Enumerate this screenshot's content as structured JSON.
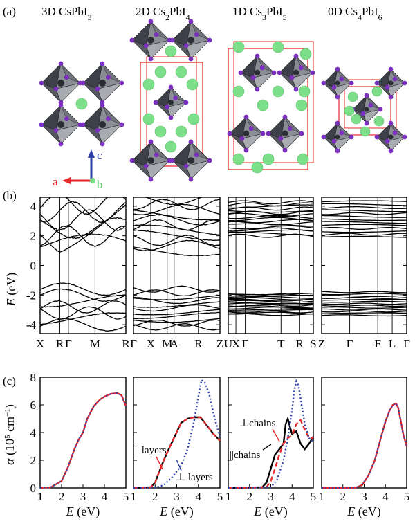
{
  "panel_labels": {
    "a": "(a)",
    "b": "(b)",
    "c": "(c)"
  },
  "structures": [
    {
      "prefix": "3D CsPbI",
      "sub": "3",
      "suffix": ""
    },
    {
      "prefix": "2D Cs",
      "sub": "2",
      "mid": "PbI",
      "sub2": "4"
    },
    {
      "prefix": "1D Cs",
      "sub": "3",
      "mid": "PbI",
      "sub2": "5"
    },
    {
      "prefix": "0D Cs",
      "sub": "4",
      "mid": "PbI",
      "sub2": "6"
    }
  ],
  "axes_legend": {
    "a": "a",
    "b": "b",
    "c": "c"
  },
  "colors": {
    "band": "#000000",
    "red": "#e8262a",
    "blue": "#2c3fa6",
    "cs": "#7ddf8a",
    "iodine": "#7a2fbf",
    "pb": "#555a66"
  },
  "band_ylabel": {
    "e": "E",
    "unit": "(eV)"
  },
  "abs_ylabel": {
    "alpha": "α",
    "unit": "(10",
    "exp": "5",
    "unit2": "cm",
    "exp2": "−1",
    "close": ")"
  },
  "abs_xlabel": {
    "e": "E",
    "unit": "(eV)"
  },
  "annotations": {
    "par_layers": "|| layers",
    "perp_layers": "⊥ layers",
    "perp_chains": "⊥chains",
    "par_chains": "||chains"
  },
  "chart_data": [
    {
      "type": "line",
      "panel": "b-3D",
      "ylabel": "E (eV)",
      "ylim": [
        -4.6,
        4.6
      ],
      "yticks": [
        -4,
        -2,
        0,
        2,
        4
      ],
      "kpoints": [
        "X",
        "R",
        "Γ",
        "M",
        "R"
      ],
      "kpos": [
        0,
        0.23,
        0.33,
        0.64,
        1.0
      ]
    },
    {
      "type": "line",
      "panel": "b-2D",
      "ylim": [
        -4.6,
        4.6
      ],
      "kpoints": [
        "Γ",
        "X",
        "M",
        "A",
        "R",
        "Z"
      ],
      "kpos": [
        0,
        0.2,
        0.39,
        0.47,
        0.75,
        1.0
      ]
    },
    {
      "type": "line",
      "panel": "b-1D",
      "ylim": [
        -4.6,
        4.6
      ],
      "kpoints": [
        "U",
        "X",
        "Γ",
        "T",
        "R",
        "S"
      ],
      "kpos": [
        0,
        0.09,
        0.2,
        0.62,
        0.84,
        1.0
      ]
    },
    {
      "type": "line",
      "panel": "b-0D",
      "ylim": [
        -4.6,
        4.6
      ],
      "kpoints": [
        "Z",
        "Γ",
        "F",
        "L",
        "Γ"
      ],
      "kpos": [
        0,
        0.33,
        0.66,
        0.83,
        1.0
      ]
    },
    {
      "type": "line",
      "panel": "c-3D",
      "xlabel": "E (eV)",
      "ylabel": "α (10^5 cm^-1)",
      "xlim": [
        1,
        5
      ],
      "ylim": [
        0,
        8
      ],
      "xticks": [
        1,
        2,
        3,
        4,
        5
      ],
      "yticks": [
        0,
        2,
        4,
        6,
        8
      ],
      "series": [
        {
          "x": [
            1,
            1.5,
            2.0,
            2.3,
            2.6,
            2.8,
            3.0,
            3.2,
            3.5,
            3.8,
            4.0,
            4.3,
            4.6,
            4.8,
            5.0
          ],
          "y": [
            0,
            0.05,
            0.5,
            1.5,
            2.8,
            3.5,
            4.0,
            5.0,
            5.9,
            6.4,
            6.6,
            6.8,
            6.85,
            6.7,
            5.9
          ]
        }
      ]
    },
    {
      "type": "line",
      "panel": "c-2D",
      "xlabel": "E (eV)",
      "xlim": [
        1,
        5
      ],
      "ylim": [
        0,
        8
      ],
      "xticks": [
        1,
        2,
        3,
        4,
        5
      ],
      "series": [
        {
          "x": [
            1,
            1.8,
            2.0,
            2.2,
            2.4,
            2.6,
            2.9,
            3.2,
            3.5,
            3.8,
            4.1,
            4.4,
            4.7,
            5.0
          ],
          "y": [
            0,
            0.05,
            0.4,
            1.2,
            2.0,
            2.7,
            3.7,
            4.7,
            5.0,
            5.1,
            5.1,
            4.5,
            3.9,
            3.4
          ]
        },
        {
          "x": [
            1,
            2.0,
            2.4,
            2.8,
            3.2,
            3.5,
            3.8,
            4.0,
            4.15,
            4.3,
            4.5,
            4.7,
            4.9,
            5.0
          ],
          "y": [
            0,
            0.02,
            0.2,
            0.8,
            1.6,
            2.8,
            4.8,
            6.6,
            7.8,
            7.6,
            6.8,
            5.4,
            4.2,
            3.6
          ]
        }
      ]
    },
    {
      "type": "line",
      "panel": "c-1D",
      "xlabel": "E (eV)",
      "xlim": [
        1,
        5
      ],
      "ylim": [
        0,
        8
      ],
      "xticks": [
        1,
        2,
        3,
        4,
        5
      ],
      "series": [
        {
          "x": [
            1,
            2.6,
            2.8,
            3.0,
            3.2,
            3.4,
            3.6,
            3.7,
            3.8,
            3.9,
            4.0,
            4.2,
            4.4,
            4.6,
            4.8,
            5.0
          ],
          "y": [
            0,
            0.05,
            0.4,
            1.4,
            2.4,
            2.8,
            3.2,
            4.6,
            5.0,
            4.4,
            3.9,
            4.1,
            3.2,
            2.8,
            3.2,
            3.7
          ]
        },
        {
          "x": [
            1,
            2.8,
            3.0,
            3.2,
            3.4,
            3.6,
            3.8,
            4.0,
            4.2,
            4.4,
            4.6,
            4.8,
            5.0
          ],
          "y": [
            0,
            0.05,
            0.5,
            1.4,
            2.4,
            3.2,
            3.6,
            3.8,
            4.6,
            4.9,
            4.2,
            3.6,
            3.6
          ]
        },
        {
          "x": [
            1,
            3.0,
            3.3,
            3.6,
            3.8,
            4.0,
            4.1,
            4.2,
            4.3,
            4.45,
            4.6,
            4.8,
            5.0
          ],
          "y": [
            0,
            0.05,
            0.6,
            2.0,
            3.6,
            5.6,
            7.0,
            7.7,
            7.4,
            6.0,
            4.6,
            3.6,
            3.3
          ]
        }
      ]
    },
    {
      "type": "line",
      "panel": "c-0D",
      "xlabel": "E (eV)",
      "xlim": [
        1,
        5
      ],
      "ylim": [
        0,
        8
      ],
      "xticks": [
        1,
        2,
        3,
        4,
        5
      ],
      "series": [
        {
          "x": [
            1,
            2.6,
            2.9,
            3.2,
            3.5,
            3.8,
            4.0,
            4.2,
            4.35,
            4.5,
            4.6,
            4.7,
            4.85,
            5.0
          ],
          "y": [
            0,
            0.02,
            0.2,
            0.9,
            2.0,
            3.7,
            4.8,
            5.6,
            6.0,
            6.1,
            5.8,
            5.0,
            3.8,
            3.0
          ]
        }
      ]
    }
  ]
}
